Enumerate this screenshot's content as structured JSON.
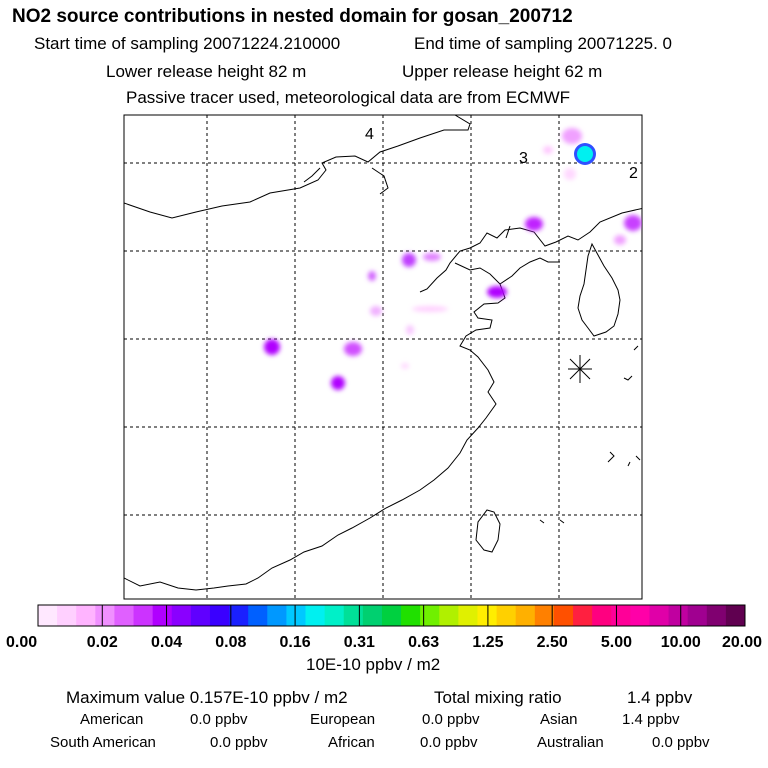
{
  "title": "NO2 source contributions in nested domain for gosan_200712",
  "sampling": {
    "start": "Start time of sampling 20071224.210000",
    "end": "End time of sampling 20071225.     0"
  },
  "release": {
    "lower": "Lower release height   82 m",
    "upper": "Upper release height   62 m"
  },
  "note": "Passive tracer used, meteorological data are from ECMWF",
  "map": {
    "grid_labels": [
      "4",
      "3",
      "2"
    ],
    "station_marker": "asterisk-icon"
  },
  "colorbar": {
    "colors": [
      "#ffe8ff",
      "#ffd0ff",
      "#ffb4ff",
      "#f090ff",
      "#e060ff",
      "#cc33ff",
      "#b000ff",
      "#8a00ff",
      "#6000ff",
      "#3a00ff",
      "#1a20ff",
      "#0060ff",
      "#0098ff",
      "#00c8ff",
      "#00f0f0",
      "#00f0c8",
      "#00e098",
      "#00d070",
      "#00d040",
      "#20e000",
      "#70f000",
      "#b0f000",
      "#e0f000",
      "#ffee00",
      "#ffd000",
      "#ffb000",
      "#ff8000",
      "#ff5000",
      "#ff2040",
      "#ff0080",
      "#ff0098",
      "#ff00a8",
      "#e000a8",
      "#c000a0",
      "#a00090",
      "#800070",
      "#600050"
    ],
    "tick_labels": [
      "0.00",
      "0.02",
      "0.04",
      "0.08",
      "0.16",
      "0.31",
      "0.63",
      "1.25",
      "2.50",
      "5.00",
      "10.00",
      "20.00"
    ],
    "units": "10E-10 ppbv / m2"
  },
  "summary": {
    "max_label": "Maximum value  0.157E-10 ppbv / m2",
    "total_label": "Total mixing ratio",
    "total_value": "1.4 ppbv"
  },
  "regions": [
    {
      "name": "American",
      "value": "0.0 ppbv"
    },
    {
      "name": "European",
      "value": "0.0 ppbv"
    },
    {
      "name": "Asian",
      "value": "1.4 ppbv"
    },
    {
      "name": "South American",
      "value": "0.0 ppbv"
    },
    {
      "name": "African",
      "value": "0.0 ppbv"
    },
    {
      "name": "Australian",
      "value": "0.0 ppbv"
    }
  ]
}
